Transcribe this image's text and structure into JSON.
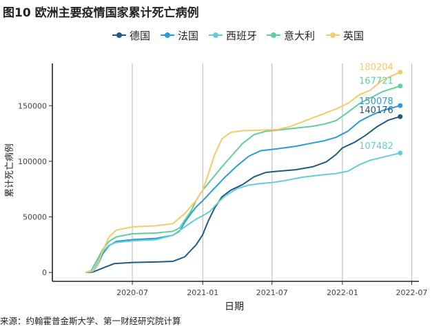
{
  "title": "图10 欧洲主要疫情国家累计死亡病例",
  "source": "来源：约翰霍普金斯大学、第一财经研究院计算",
  "chart_data": {
    "type": "line",
    "title": "图10 欧洲主要疫情国家累计死亡病例",
    "xlabel": "日期",
    "ylabel": "累计死亡病例",
    "x_ticks": [
      "2020-07",
      "2021-01",
      "2021-07",
      "2022-01",
      "2022-07"
    ],
    "x_range": [
      "2019-12-05",
      "2022-07-20"
    ],
    "y_ticks": [
      0,
      50000,
      100000,
      150000
    ],
    "ylim": [
      -8000,
      188000
    ],
    "grid": "vertical lines at x ticks",
    "legend_position": "top",
    "series": [
      {
        "name": "德国",
        "color": "#1f5a85",
        "end_label": "140176",
        "points": [
          [
            "2020-03-01",
            0
          ],
          [
            "2020-03-20",
            400
          ],
          [
            "2020-04-15",
            4000
          ],
          [
            "2020-05-15",
            8000
          ],
          [
            "2020-07-01",
            9000
          ],
          [
            "2020-09-01",
            9400
          ],
          [
            "2020-10-15",
            10000
          ],
          [
            "2020-11-15",
            14000
          ],
          [
            "2020-12-15",
            25000
          ],
          [
            "2021-01-01",
            34000
          ],
          [
            "2021-01-15",
            46000
          ],
          [
            "2021-02-01",
            58000
          ],
          [
            "2021-02-20",
            68000
          ],
          [
            "2021-03-15",
            74000
          ],
          [
            "2021-04-15",
            79000
          ],
          [
            "2021-05-15",
            86000
          ],
          [
            "2021-06-15",
            90000
          ],
          [
            "2021-07-15",
            91000
          ],
          [
            "2021-09-01",
            92400
          ],
          [
            "2021-10-15",
            95000
          ],
          [
            "2021-11-20",
            99500
          ],
          [
            "2021-12-15",
            106000
          ],
          [
            "2022-01-01",
            112000
          ],
          [
            "2022-02-01",
            117000
          ],
          [
            "2022-03-01",
            123000
          ],
          [
            "2022-04-01",
            131000
          ],
          [
            "2022-05-01",
            137000
          ],
          [
            "2022-06-01",
            140176
          ]
        ]
      },
      {
        "name": "法国",
        "color": "#2b9bd7",
        "end_label": "150078",
        "points": [
          [
            "2020-03-01",
            0
          ],
          [
            "2020-03-20",
            1000
          ],
          [
            "2020-04-01",
            6000
          ],
          [
            "2020-04-15",
            17000
          ],
          [
            "2020-05-01",
            24000
          ],
          [
            "2020-05-20",
            28000
          ],
          [
            "2020-07-01",
            29500
          ],
          [
            "2020-09-01",
            30700
          ],
          [
            "2020-10-15",
            33500
          ],
          [
            "2020-11-01",
            37000
          ],
          [
            "2020-11-15",
            45000
          ],
          [
            "2020-12-01",
            53000
          ],
          [
            "2020-12-15",
            59000
          ],
          [
            "2021-01-01",
            64500
          ],
          [
            "2021-02-01",
            76000
          ],
          [
            "2021-03-01",
            86000
          ],
          [
            "2021-04-01",
            96000
          ],
          [
            "2021-05-01",
            104500
          ],
          [
            "2021-06-01",
            109500
          ],
          [
            "2021-07-15",
            111200
          ],
          [
            "2021-09-01",
            113500
          ],
          [
            "2021-10-15",
            116500
          ],
          [
            "2021-11-15",
            118500
          ],
          [
            "2021-12-15",
            121500
          ],
          [
            "2022-01-15",
            127000
          ],
          [
            "2022-02-15",
            136000
          ],
          [
            "2022-03-15",
            141000
          ],
          [
            "2022-04-15",
            145500
          ],
          [
            "2022-06-01",
            150078
          ]
        ]
      },
      {
        "name": "西班牙",
        "color": "#66cdd6",
        "end_label": "107482",
        "points": [
          [
            "2020-03-01",
            0
          ],
          [
            "2020-03-20",
            1500
          ],
          [
            "2020-04-01",
            9000
          ],
          [
            "2020-04-15",
            19000
          ],
          [
            "2020-05-01",
            24500
          ],
          [
            "2020-05-20",
            27000
          ],
          [
            "2020-07-01",
            28400
          ],
          [
            "2020-09-01",
            29500
          ],
          [
            "2020-10-15",
            33500
          ],
          [
            "2020-11-15",
            41000
          ],
          [
            "2020-12-15",
            48000
          ],
          [
            "2021-01-01",
            51000
          ],
          [
            "2021-01-20",
            55000
          ],
          [
            "2021-02-10",
            63000
          ],
          [
            "2021-03-01",
            69000
          ],
          [
            "2021-04-01",
            75500
          ],
          [
            "2021-05-01",
            78500
          ],
          [
            "2021-06-01",
            80000
          ],
          [
            "2021-07-01",
            80800
          ],
          [
            "2021-08-01",
            82500
          ],
          [
            "2021-09-15",
            85500
          ],
          [
            "2021-11-01",
            87500
          ],
          [
            "2021-12-15",
            89000
          ],
          [
            "2022-01-15",
            91000
          ],
          [
            "2022-02-15",
            97000
          ],
          [
            "2022-03-15",
            101000
          ],
          [
            "2022-04-15",
            103500
          ],
          [
            "2022-06-01",
            107482
          ]
        ]
      },
      {
        "name": "意大利",
        "color": "#5fcf9d",
        "end_label": "167721",
        "points": [
          [
            "2020-03-01",
            0
          ],
          [
            "2020-03-15",
            1500
          ],
          [
            "2020-04-01",
            12000
          ],
          [
            "2020-04-15",
            21000
          ],
          [
            "2020-05-01",
            28000
          ],
          [
            "2020-05-20",
            32000
          ],
          [
            "2020-07-01",
            34800
          ],
          [
            "2020-09-01",
            35500
          ],
          [
            "2020-10-15",
            37000
          ],
          [
            "2020-11-01",
            40000
          ],
          [
            "2020-11-15",
            47000
          ],
          [
            "2020-12-01",
            55000
          ],
          [
            "2020-12-15",
            65000
          ],
          [
            "2021-01-01",
            74000
          ],
          [
            "2021-01-20",
            82000
          ],
          [
            "2021-02-15",
            93000
          ],
          [
            "2021-03-15",
            104000
          ],
          [
            "2021-04-15",
            116000
          ],
          [
            "2021-05-15",
            124000
          ],
          [
            "2021-06-15",
            127000
          ],
          [
            "2021-07-15",
            128000
          ],
          [
            "2021-09-01",
            129800
          ],
          [
            "2021-10-15",
            131500
          ],
          [
            "2021-11-15",
            133500
          ],
          [
            "2021-12-15",
            136500
          ],
          [
            "2022-01-15",
            144000
          ],
          [
            "2022-02-15",
            152000
          ],
          [
            "2022-03-15",
            157000
          ],
          [
            "2022-04-15",
            162500
          ],
          [
            "2022-06-01",
            167721
          ]
        ]
      },
      {
        "name": "英国",
        "color": "#f6c96c",
        "end_label": "180204",
        "points": [
          [
            "2020-03-01",
            0
          ],
          [
            "2020-03-20",
            1500
          ],
          [
            "2020-04-01",
            6000
          ],
          [
            "2020-04-15",
            20000
          ],
          [
            "2020-05-01",
            32000
          ],
          [
            "2020-05-20",
            38000
          ],
          [
            "2020-07-01",
            41000
          ],
          [
            "2020-09-01",
            42000
          ],
          [
            "2020-10-15",
            44000
          ],
          [
            "2020-11-15",
            53000
          ],
          [
            "2020-12-15",
            65000
          ],
          [
            "2021-01-01",
            74000
          ],
          [
            "2021-01-15",
            88000
          ],
          [
            "2021-02-01",
            106000
          ],
          [
            "2021-02-20",
            120000
          ],
          [
            "2021-03-15",
            126000
          ],
          [
            "2021-04-15",
            127500
          ],
          [
            "2021-06-01",
            128000
          ],
          [
            "2021-07-15",
            128500
          ],
          [
            "2021-08-15",
            131000
          ],
          [
            "2021-09-15",
            135000
          ],
          [
            "2021-10-15",
            139000
          ],
          [
            "2021-11-15",
            143000
          ],
          [
            "2021-12-15",
            147000
          ],
          [
            "2022-01-15",
            152000
          ],
          [
            "2022-02-15",
            160000
          ],
          [
            "2022-03-15",
            164000
          ],
          [
            "2022-04-15",
            173000
          ],
          [
            "2022-06-01",
            180204
          ]
        ]
      }
    ]
  }
}
